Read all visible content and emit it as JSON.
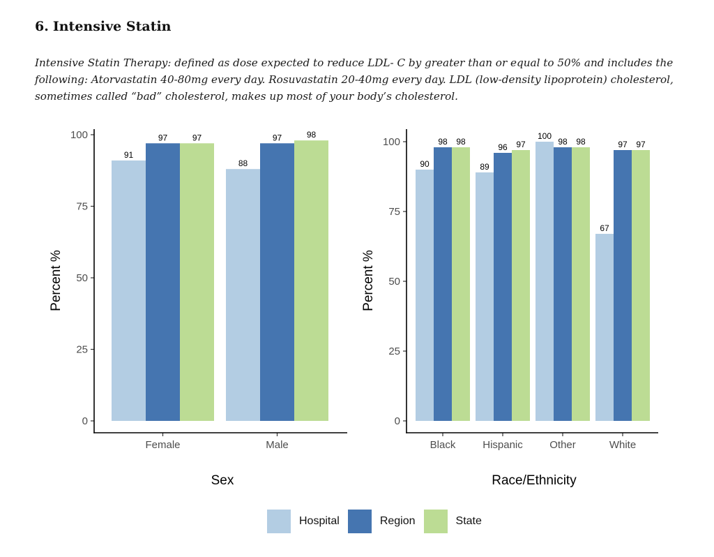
{
  "section": {
    "number": "6.",
    "title": "Intensive Statin",
    "description": "Intensive Statin Therapy: defined as dose expected to reduce LDL- C by greater than or equal to 50% and includes the following: Atorvastatin 40-80mg every day. Rosuvastatin 20-40mg every day. LDL (low-density lipoprotein) cholesterol, sometimes called “bad” cholesterol, makes up most of your body’s cholesterol."
  },
  "legend": {
    "items": [
      {
        "name": "Hospital",
        "color": "#b3cde3"
      },
      {
        "name": "Region",
        "color": "#4575b0"
      },
      {
        "name": "State",
        "color": "#bcdc94"
      }
    ]
  },
  "chart_data": [
    {
      "type": "bar",
      "title": "",
      "xlabel": "Sex",
      "ylabel": "Percent %",
      "ylim": [
        0,
        100
      ],
      "yticks": [
        0,
        25,
        50,
        75,
        100
      ],
      "categories": [
        "Female",
        "Male"
      ],
      "series": [
        {
          "name": "Hospital",
          "values": [
            91,
            88
          ]
        },
        {
          "name": "Region",
          "values": [
            97,
            97
          ]
        },
        {
          "name": "State",
          "values": [
            97,
            98
          ]
        }
      ]
    },
    {
      "type": "bar",
      "title": "",
      "xlabel": "Race/Ethnicity",
      "ylabel": "Percent %",
      "ylim": [
        0,
        100
      ],
      "yticks": [
        0,
        25,
        50,
        75,
        100
      ],
      "categories": [
        "Black",
        "Hispanic",
        "Other",
        "White"
      ],
      "series": [
        {
          "name": "Hospital",
          "values": [
            90,
            89,
            100,
            67
          ]
        },
        {
          "name": "Region",
          "values": [
            98,
            96,
            98,
            97
          ]
        },
        {
          "name": "State",
          "values": [
            98,
            97,
            98,
            97
          ]
        }
      ]
    }
  ]
}
